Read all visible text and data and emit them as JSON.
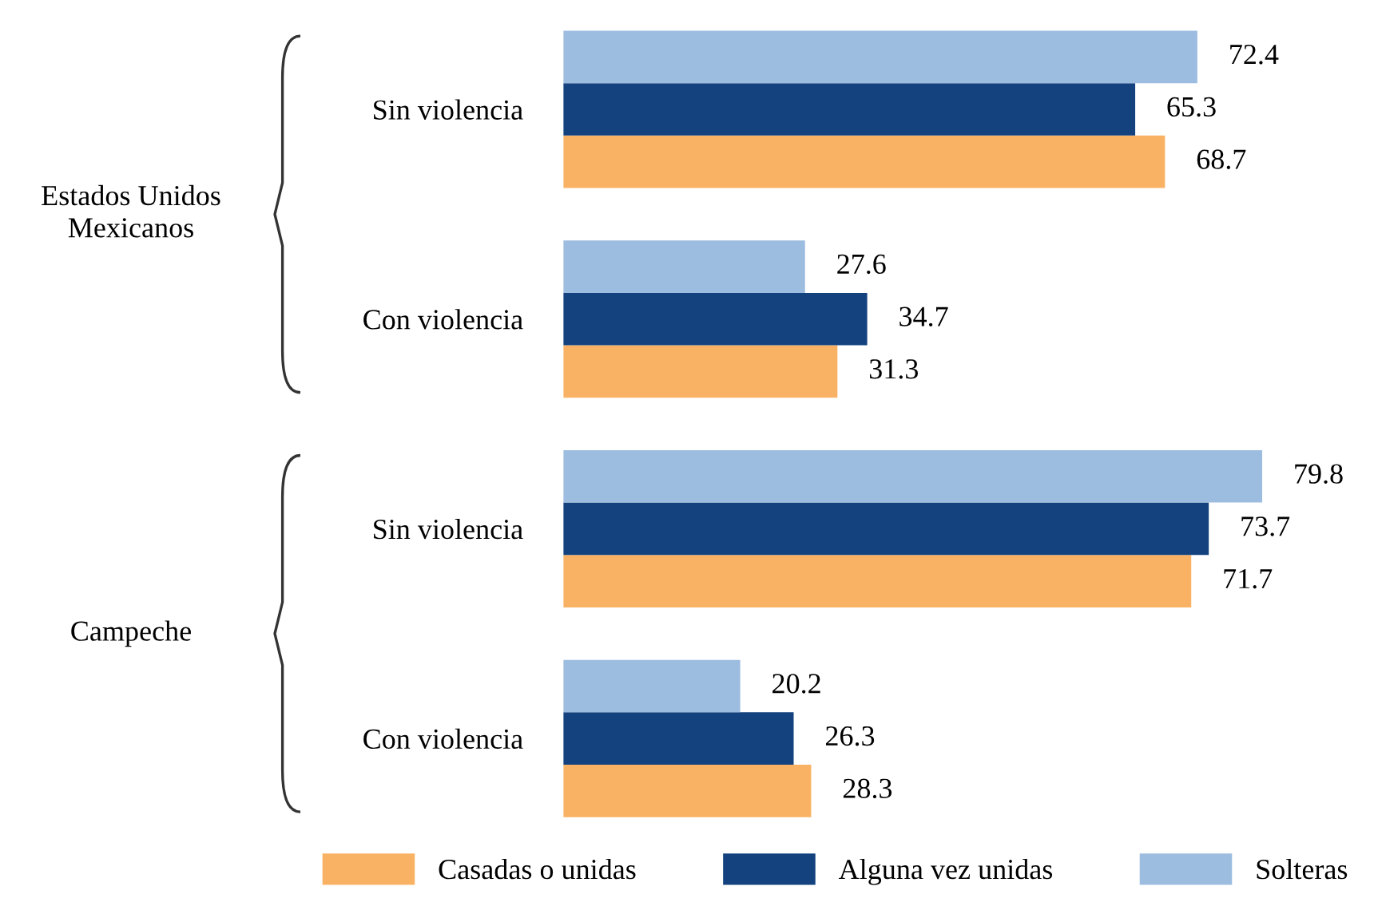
{
  "chart_data": {
    "type": "bar",
    "orientation": "horizontal",
    "data_labels": true,
    "legend": "bottom",
    "grid": false,
    "categories": [
      "Sin violencia",
      "Con violencia",
      "Sin violencia",
      "Con violencia"
    ],
    "annotations": [
      "Estados Unidos Mexicanos",
      "Campeche"
    ],
    "series": [
      {
        "name": "Casadas o unidas",
        "color": "#f9b264",
        "values": [
          68.7,
          31.3,
          71.7,
          28.3
        ]
      },
      {
        "name": "Alguna vez unidas",
        "color": "#13427f",
        "values": [
          65.3,
          34.7,
          73.7,
          26.3
        ]
      },
      {
        "name": "Solteras",
        "color": "#9dbde0",
        "values": [
          72.4,
          27.6,
          79.8,
          20.2
        ]
      }
    ]
  }
}
